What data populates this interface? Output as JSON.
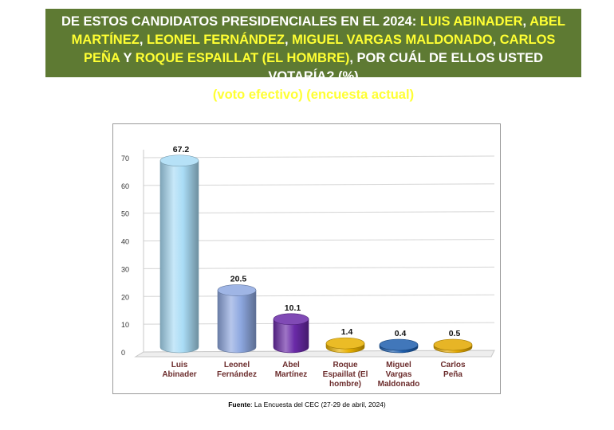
{
  "title": {
    "part1": "DE ESTOS CANDIDATOS PRESIDENCIALES EN EL 2024: ",
    "name1": "LUIS ABINADER",
    "sep1": ", ",
    "name2": "ABEL MARTÍNEZ",
    "sep2": ", ",
    "name3": "LEONEL FERNÁNDEZ",
    "sep3": ", ",
    "name4": "MIGUEL VARGAS MALDONADO",
    "sep4": ", ",
    "name5": "CARLOS PEÑA",
    "sep5": " Y ",
    "name6": "ROQUE ESPAILLAT (EL HOMBRE)",
    "part2": ", POR CUÁL DE ELLOS USTED VOTARÍA? (%)",
    "line3_open1": "(",
    "note1": "voto efectivo",
    "line3_close1": ") (",
    "note2": "encuesta actual",
    "line3_close2": ")"
  },
  "source": {
    "label": "Fuente",
    "text": ": La Encuesta del CEC (27-29 de abril, 2024)"
  },
  "chart_data": {
    "type": "bar",
    "categories": [
      [
        "Luis",
        "Abinader"
      ],
      [
        "Leonel",
        "Fernández"
      ],
      [
        "Abel",
        "Martínez"
      ],
      [
        "Roque",
        "Espaillat (El",
        "hombre)"
      ],
      [
        "Miguel",
        "Vargas",
        "Maldonado"
      ],
      [
        "Carlos",
        "Peña"
      ]
    ],
    "values": [
      67.2,
      20.5,
      10.1,
      1.4,
      0.4,
      0.5
    ],
    "value_labels": [
      "67.2",
      "20.5",
      "10.1",
      "1.4",
      "0.4",
      "0.5"
    ],
    "colors": [
      "#a9dcf5",
      "#8ea8e0",
      "#6a2aa8",
      "#e8b000",
      "#1f5fae",
      "#e3a800"
    ],
    "y_ticks": [
      "0",
      "10",
      "20",
      "30",
      "40",
      "50",
      "60",
      "70"
    ],
    "ylim": [
      0,
      70
    ],
    "grid": true
  }
}
